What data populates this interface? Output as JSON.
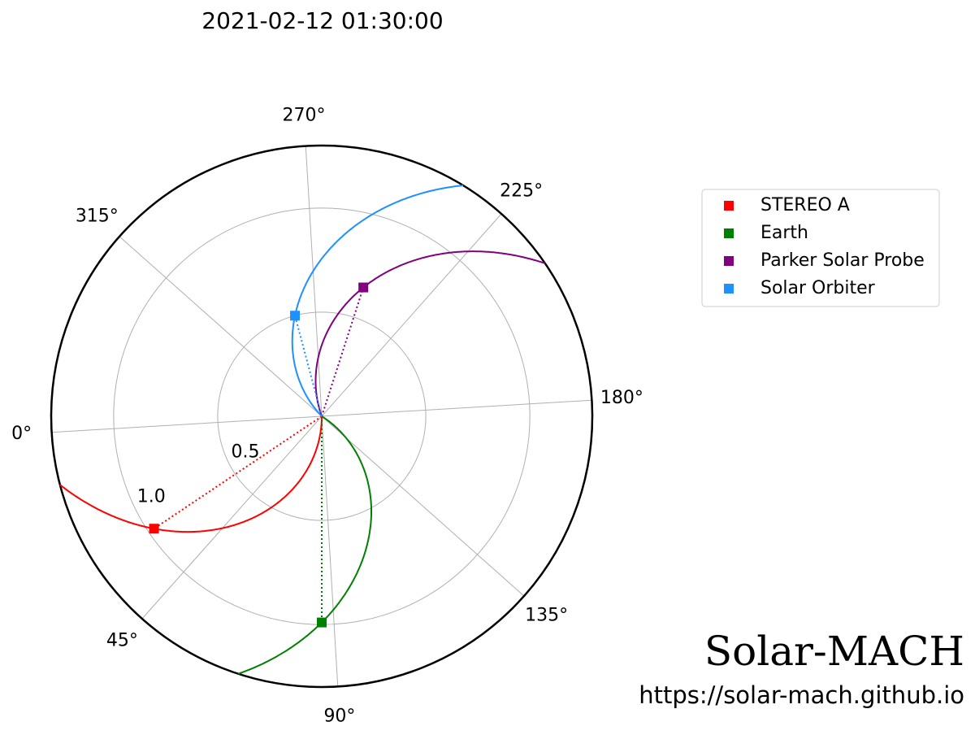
{
  "chart_data": {
    "type": "polar",
    "title": "2021-02-12 01:30:00",
    "rlim": [
      0,
      1.3
    ],
    "rticks": [
      0.5,
      {
        "value": 1,
        "label": "1.0"
      }
    ],
    "thetaticks": [
      {
        "value": 0,
        "label": "0°"
      },
      {
        "value": 45,
        "label": "45°"
      },
      {
        "value": 90,
        "label": "90°"
      },
      {
        "value": 135,
        "label": "135°"
      },
      {
        "value": 180,
        "label": "180°"
      },
      {
        "value": 225,
        "label": "225°"
      },
      {
        "value": 270,
        "label": "270°"
      },
      {
        "value": 315,
        "label": "315°"
      }
    ],
    "grid": true,
    "legend": "right",
    "series": [
      {
        "name": "STEREO A",
        "color": "#ff0000",
        "theta": 30.4,
        "r": 0.97
      },
      {
        "name": "Earth",
        "color": "#008000",
        "theta": 86.6,
        "r": 0.99
      },
      {
        "name": "Parker Solar Probe",
        "color": "#800080",
        "theta": 248.7,
        "r": 0.65
      },
      {
        "name": "Solar Orbiter",
        "color": "#1e90ff",
        "theta": 281.5,
        "r": 0.5
      }
    ]
  },
  "watermark": {
    "title": "Solar-MACH",
    "url": "https://solar-mach.github.io"
  }
}
